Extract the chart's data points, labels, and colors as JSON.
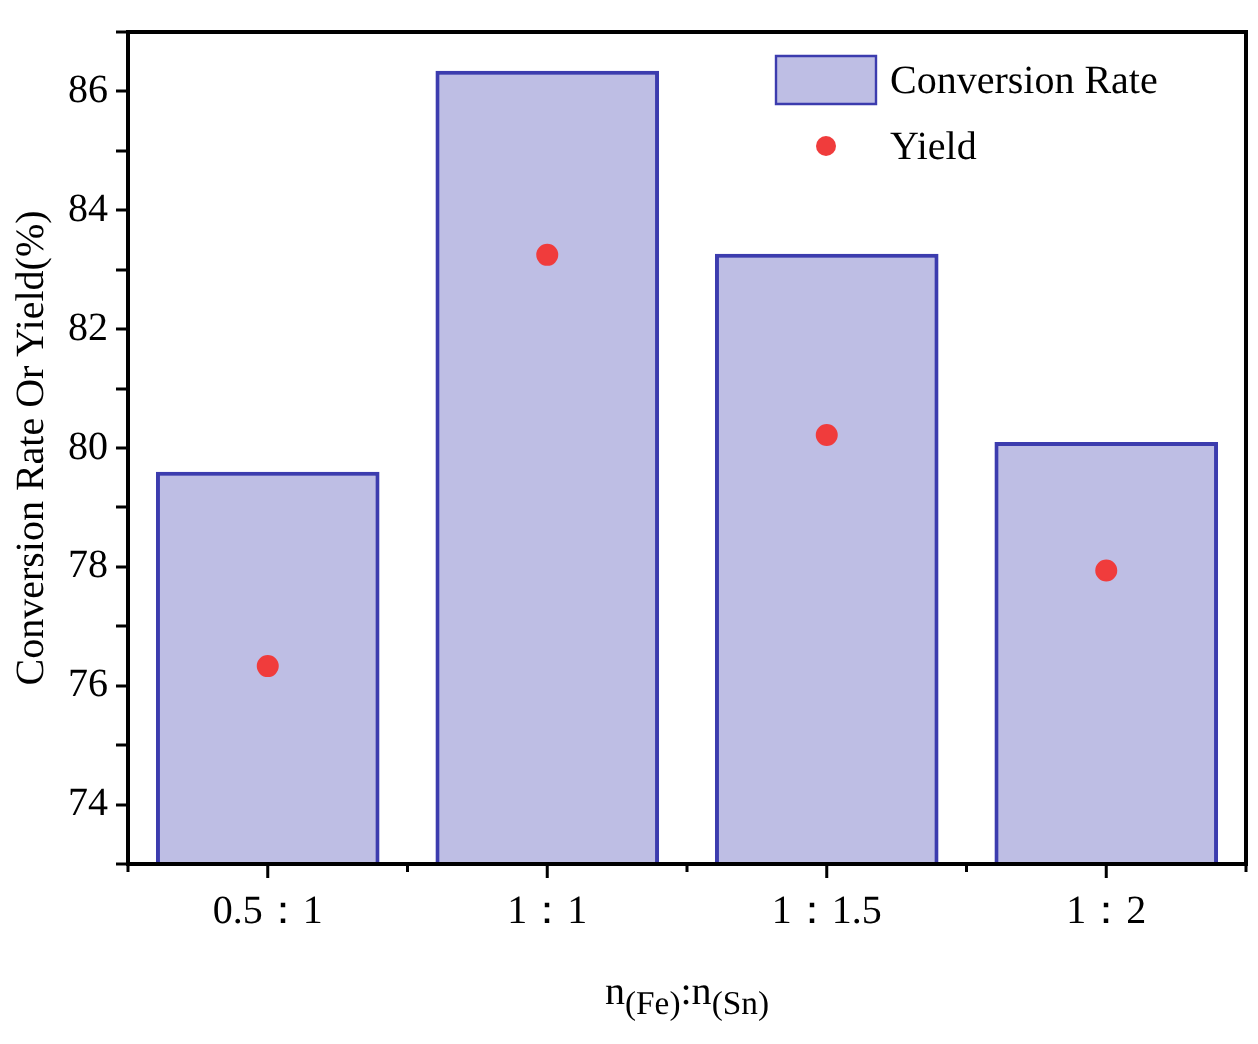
{
  "chart_data": {
    "type": "bar",
    "xlabel": "n$_{(Fe)}$:n$_{(Sn)}$",
    "ylabel": "Conversion Rate Or Yield(%)",
    "categories": [
      "0.5：1",
      "1：1",
      "1：1.5",
      "1：2"
    ],
    "series": [
      {
        "name": "Conversion Rate",
        "color": "#3c3cae",
        "values": [
          79.6,
          86.35,
          83.27,
          80.1
        ]
      },
      {
        "name": "Yield",
        "type": "scatter",
        "color": "#f03c3c",
        "x": [
          "0.5：1",
          "1：1",
          "1：1.5",
          "1：2"
        ],
        "values": [
          76.33,
          83.25,
          80.22,
          77.94
        ]
      }
    ],
    "ylim": [
      73,
      87
    ],
    "yticks": [
      {
        "value": 73,
        "label": null
      },
      74,
      {
        "value": 75,
        "label": null
      },
      76,
      {
        "value": 77,
        "label": null
      },
      78,
      {
        "value": 79,
        "label": null
      },
      80,
      {
        "value": 81,
        "label": null
      },
      82,
      {
        "value": 83,
        "label": null
      },
      84,
      {
        "value": 85,
        "label": null
      },
      86,
      {
        "value": 87,
        "label": null
      }
    ],
    "grid": false,
    "legend": "top right",
    "marker": "circle"
  }
}
